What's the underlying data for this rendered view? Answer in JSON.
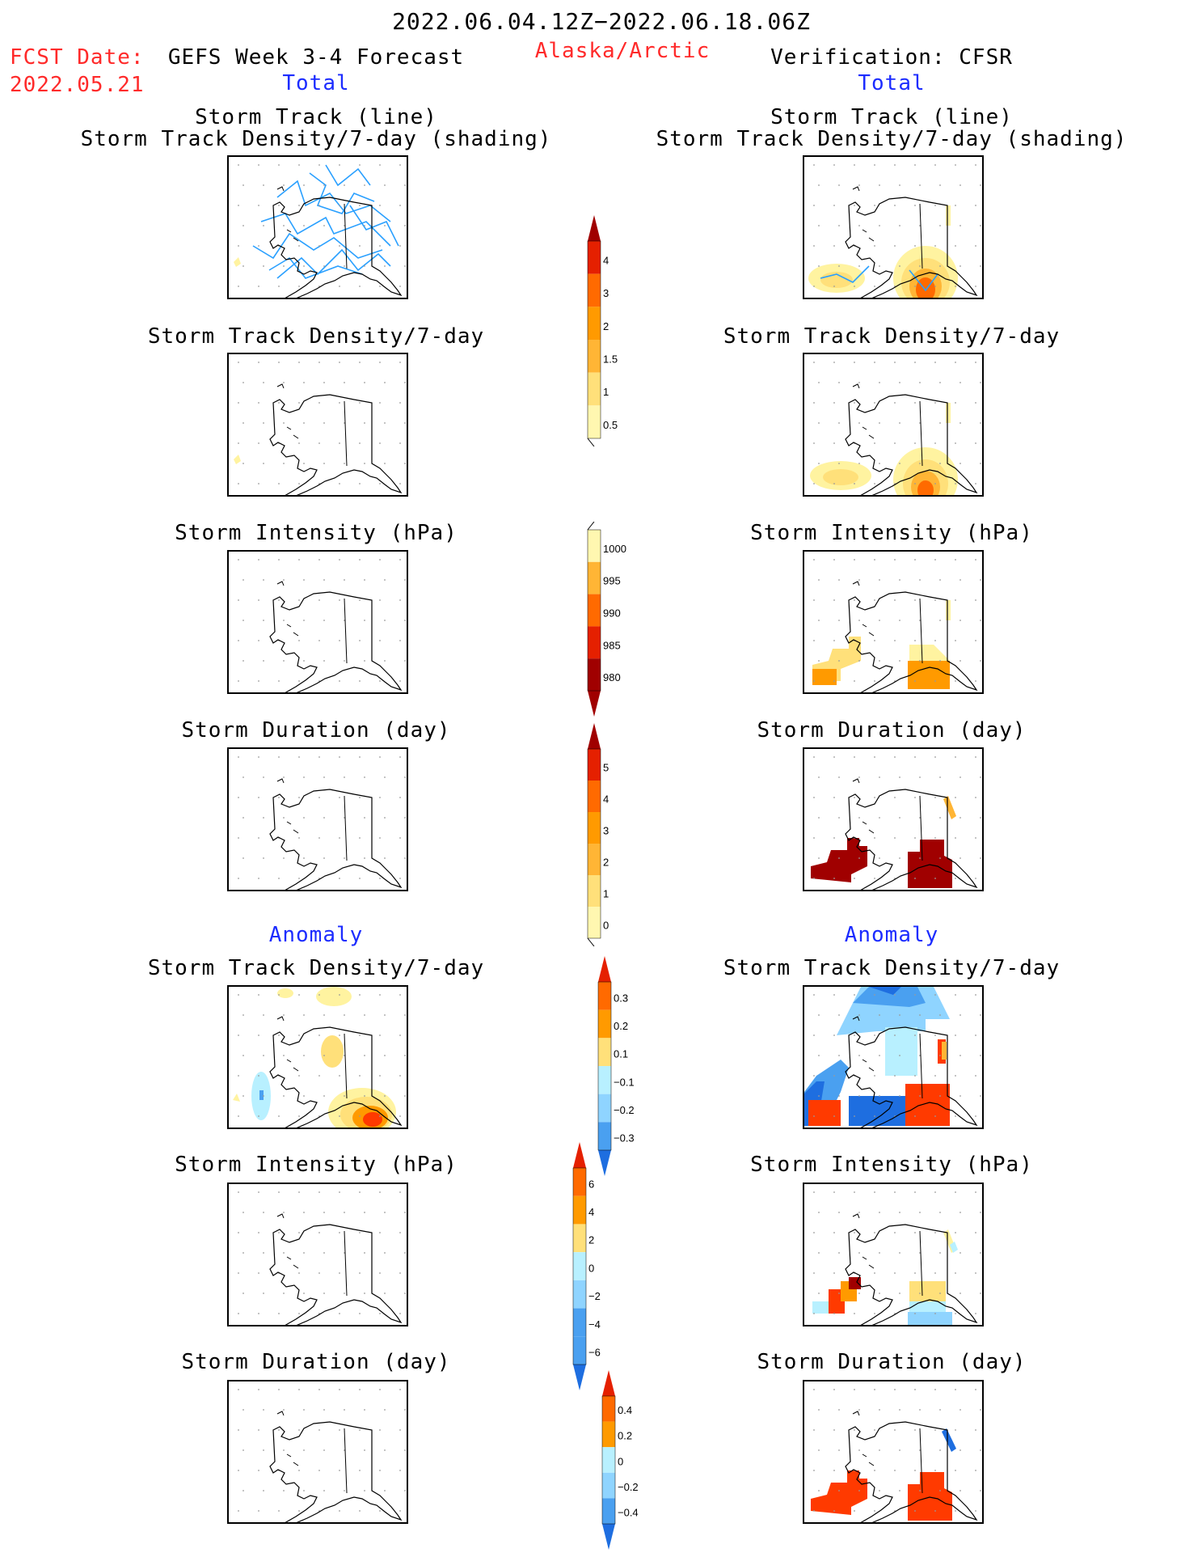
{
  "header": {
    "period": "2022.06.04.12Z−2022.06.18.06Z",
    "fcst_date_label": "FCST Date:",
    "fcst_date_value": "2022.05.21",
    "region": "Alaska/Arctic",
    "left_title": "GEFS Week 3-4 Forecast",
    "right_title": "Verification: CFSR"
  },
  "sections": {
    "total": "Total",
    "anomaly": "Anomaly"
  },
  "panel_titles": {
    "track_line": "Storm Track (line)",
    "track_shading": "Storm Track Density/7-day (shading)",
    "density": "Storm Track Density/7-day",
    "intensity": "Storm Intensity (hPa)",
    "duration": "Storm Duration (day)"
  },
  "colorbars": {
    "density_total": [
      "4",
      "3",
      "2",
      "1.5",
      "1",
      "0.5"
    ],
    "intensity_total": [
      "1000",
      "995",
      "990",
      "985",
      "980"
    ],
    "duration_total": [
      "5",
      "4",
      "3",
      "2",
      "1",
      "0"
    ],
    "density_anom": [
      "0.3",
      "0.2",
      "0.1",
      "−0.1",
      "−0.2",
      "−0.3"
    ],
    "intensity_anom": [
      "6",
      "4",
      "2",
      "0",
      "−2",
      "−4",
      "−6"
    ],
    "duration_anom": [
      "0.4",
      "0.2",
      "0",
      "−0.2",
      "−0.4"
    ]
  },
  "colors": {
    "red_text": "#ff2a2a",
    "blue_text": "#1c2cff",
    "track_line": "#2aa0ff",
    "warm_scale": [
      "#fff7b0",
      "#ffe07a",
      "#ffb535",
      "#ff9a00",
      "#ff6a00",
      "#e52000",
      "#a00000"
    ],
    "cool_scale": [
      "#b8f0ff",
      "#8fd4ff",
      "#4aa0f0",
      "#1e6ee0"
    ]
  }
}
